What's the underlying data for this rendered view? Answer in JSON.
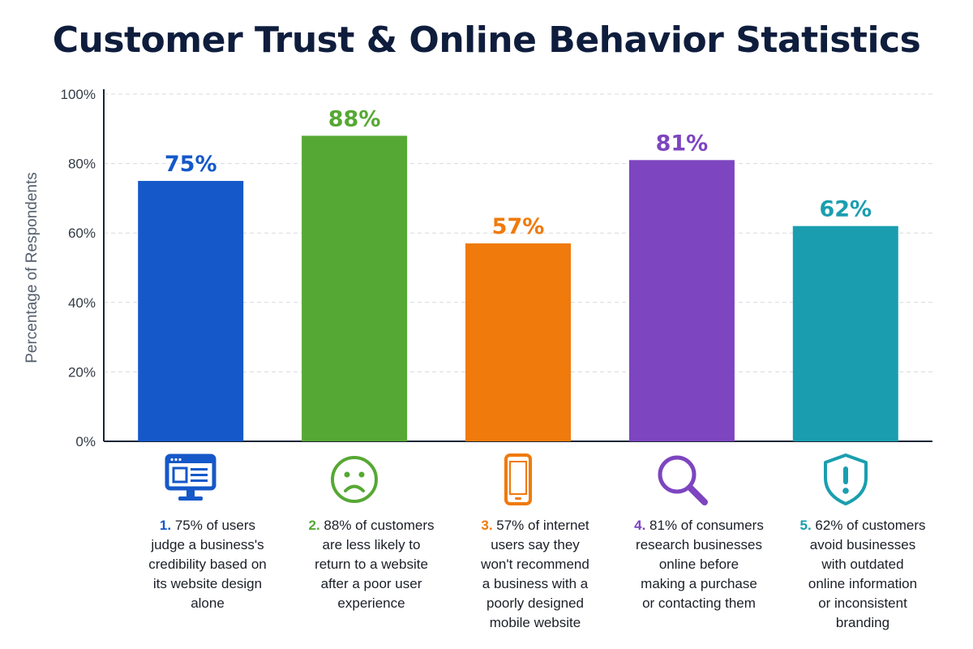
{
  "chart_data": {
    "type": "bar",
    "title": "Customer Trust & Online Behavior Statistics",
    "ylabel": "Percentage of Respondents",
    "ylim": [
      0,
      100
    ],
    "yticks": [
      "0%",
      "20%",
      "40%",
      "60%",
      "80%",
      "100%"
    ],
    "grid": true,
    "values": [
      75,
      88,
      57,
      81,
      62
    ],
    "value_labels": [
      "75%",
      "88%",
      "57%",
      "81%",
      "62%"
    ],
    "colors": [
      "#1558c9",
      "#56a834",
      "#f07a0c",
      "#7d45c0",
      "#1a9eaf"
    ],
    "icons": [
      "monitor-icon",
      "sad-face-icon",
      "smartphone-icon",
      "magnifier-icon",
      "shield-alert-icon"
    ],
    "captions": [
      {
        "num": "1.",
        "lines": [
          "75% of users",
          "judge a business's",
          "credibility based on",
          "its website design",
          "alone"
        ]
      },
      {
        "num": "2.",
        "lines": [
          "88% of customers",
          "are less likely to",
          "return to a website",
          "after a poor user",
          "experience"
        ]
      },
      {
        "num": "3.",
        "lines": [
          "57% of internet",
          "users say they",
          "won't recommend",
          "a business with a",
          "poorly designed",
          "mobile website"
        ]
      },
      {
        "num": "4.",
        "lines": [
          "81% of consumers",
          "research businesses",
          "online before",
          "making a purchase",
          "or contacting them"
        ]
      },
      {
        "num": "5.",
        "lines": [
          "62% of customers",
          "avoid businesses",
          "with outdated",
          "online information",
          "or inconsistent",
          "branding"
        ]
      }
    ]
  }
}
